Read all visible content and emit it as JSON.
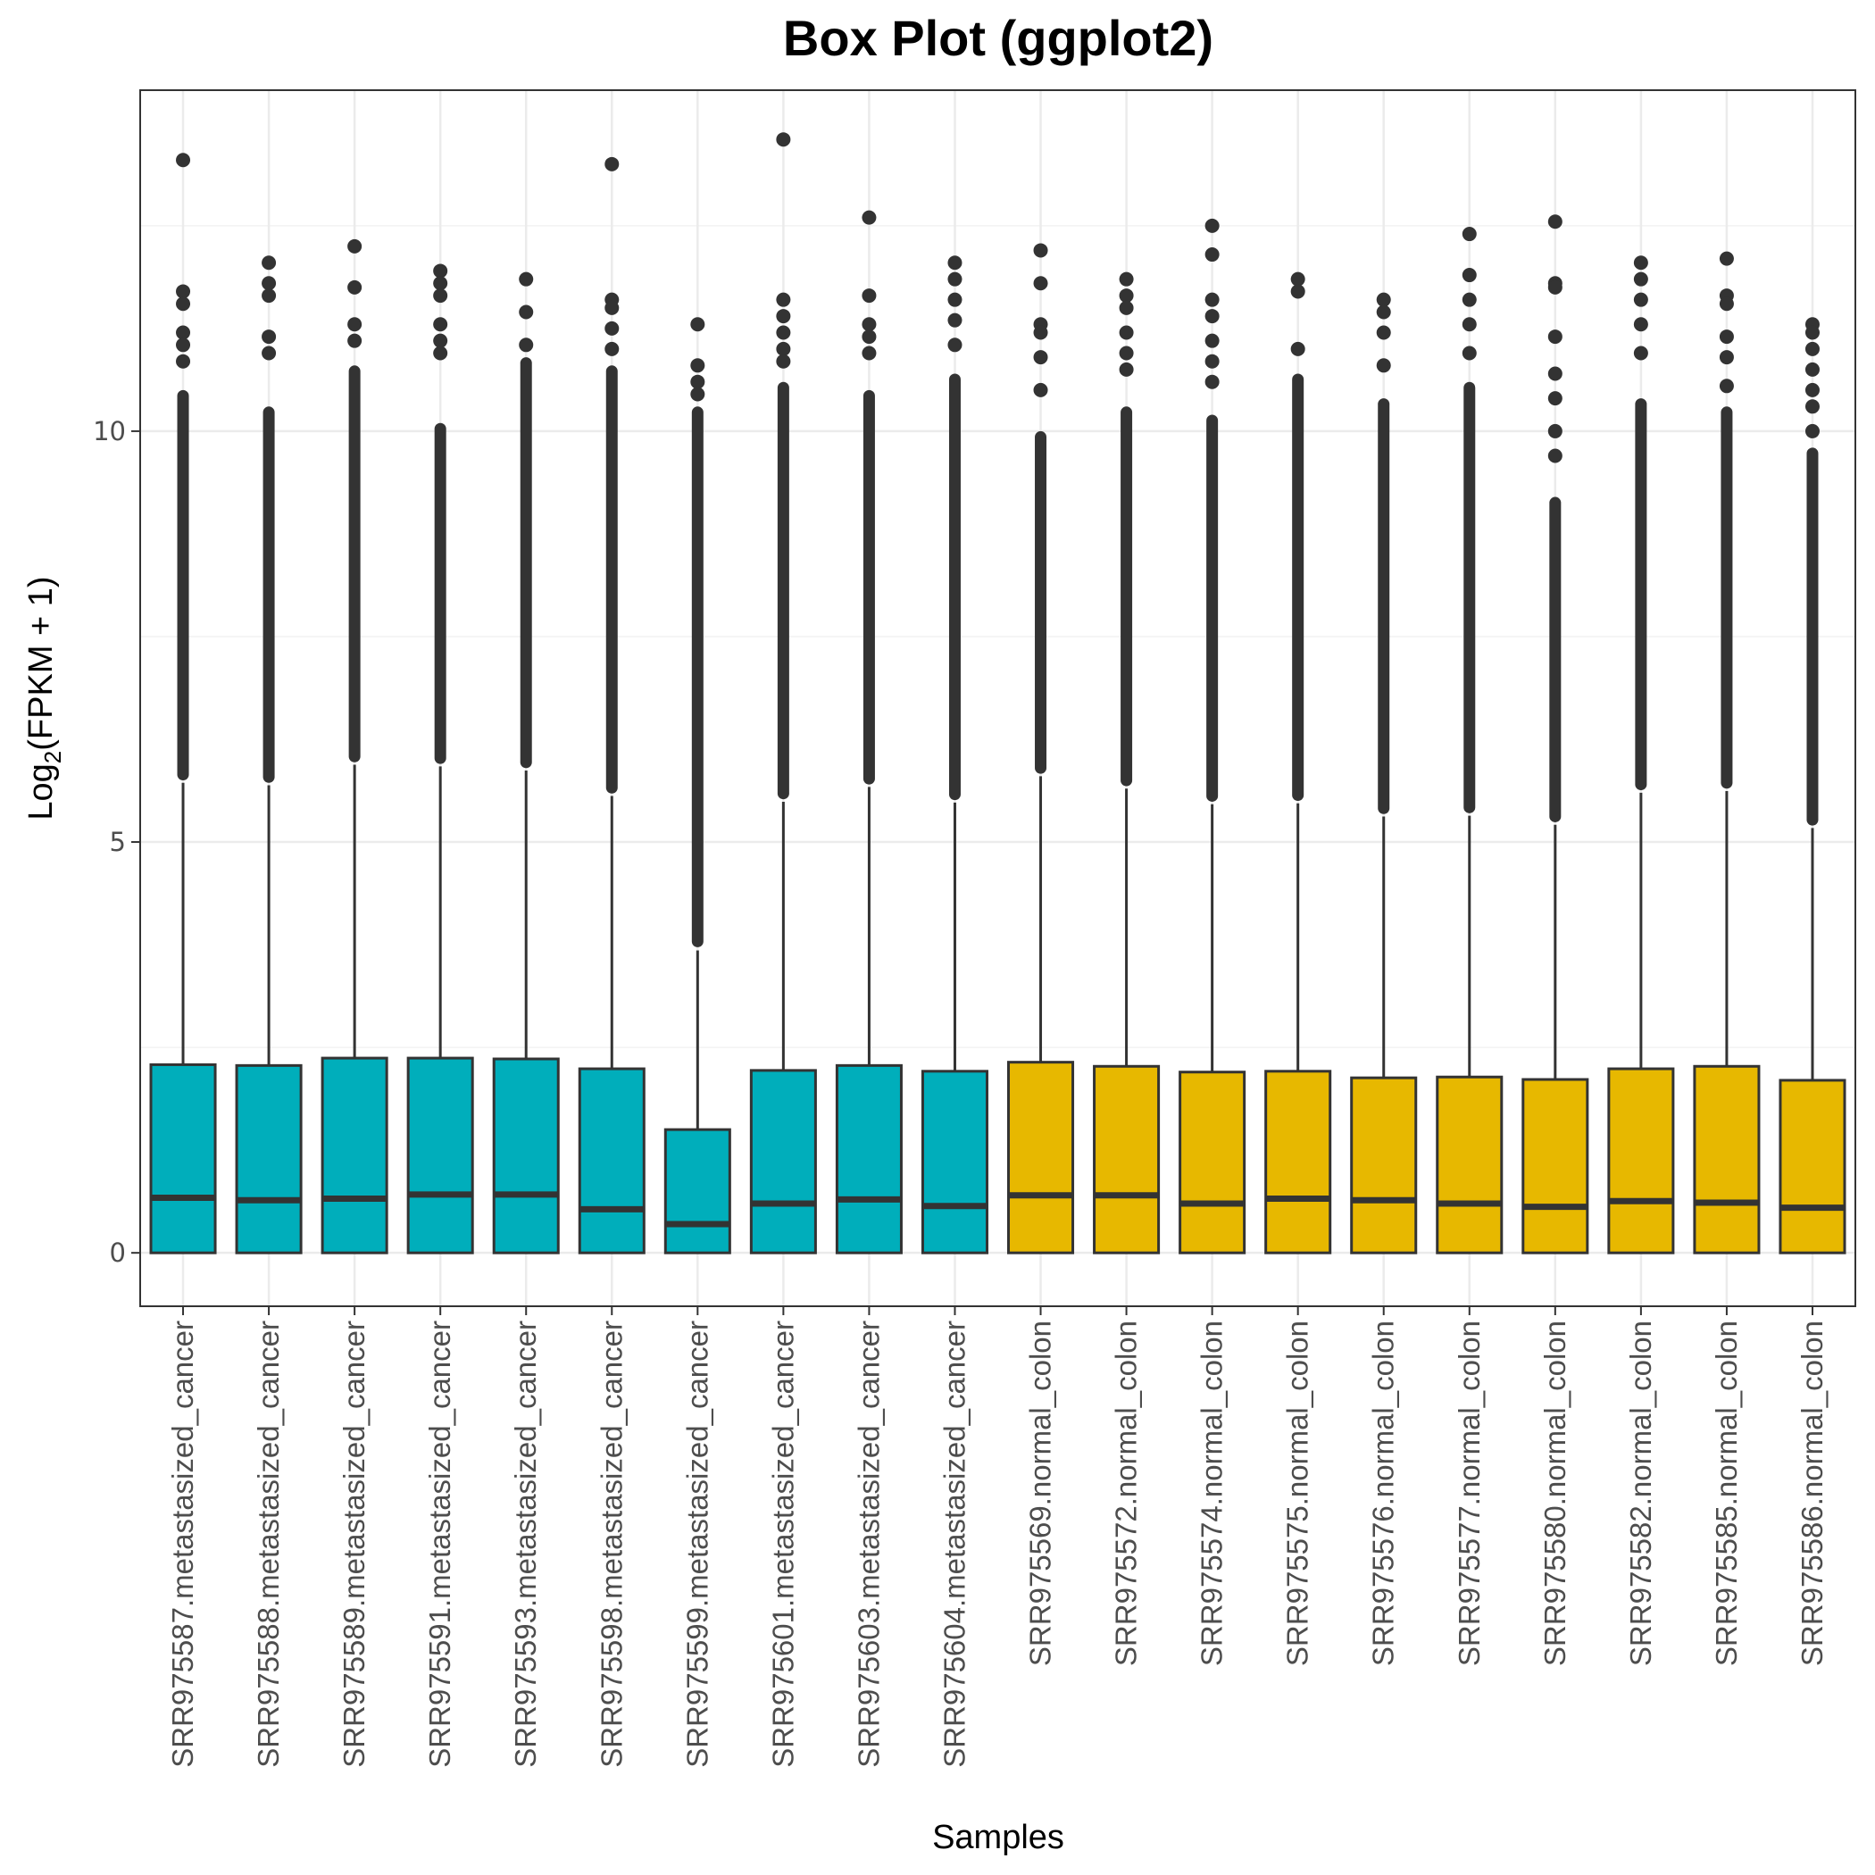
{
  "chart_data": {
    "type": "box",
    "title": "Box Plot (ggplot2)",
    "xlabel": "Samples",
    "ylabel": {
      "prefix": "Log",
      "subscript": "2",
      "suffix": "(FPKM + 1)"
    },
    "ylim": [
      -0.65,
      14.15
    ],
    "yticks": [
      0,
      5,
      10
    ],
    "grid": true,
    "legend": "none",
    "colors": {
      "metastasized_cancer": "#00AEBB",
      "normal_colon": "#E7B800",
      "outline": "#333333",
      "grid": "#ebebeb"
    },
    "boxes": [
      {
        "label": "SRR975587.metastasized_cancer",
        "group": "metastasized_cancer",
        "q1": 0.0,
        "median": 0.67,
        "q3": 2.29,
        "whisker_low": 0.0,
        "whisker_high": 5.72,
        "outlier_min": 5.75,
        "outlier_max": 10.5,
        "extreme_outliers": [
          11.7,
          11.55,
          11.2,
          11.05,
          10.85,
          13.3
        ]
      },
      {
        "label": "SRR975588.metastasized_cancer",
        "group": "metastasized_cancer",
        "q1": 0.0,
        "median": 0.64,
        "q3": 2.28,
        "whisker_low": 0.0,
        "whisker_high": 5.69,
        "outlier_min": 5.72,
        "outlier_max": 10.3,
        "extreme_outliers": [
          12.05,
          11.8,
          11.65,
          11.15,
          10.95
        ]
      },
      {
        "label": "SRR975589.metastasized_cancer",
        "group": "metastasized_cancer",
        "q1": 0.0,
        "median": 0.66,
        "q3": 2.37,
        "whisker_low": 0.0,
        "whisker_high": 5.94,
        "outlier_min": 5.97,
        "outlier_max": 10.8,
        "extreme_outliers": [
          12.25,
          11.75,
          11.3,
          11.1
        ]
      },
      {
        "label": "SRR975591.metastasized_cancer",
        "group": "metastasized_cancer",
        "q1": 0.0,
        "median": 0.71,
        "q3": 2.37,
        "whisker_low": 0.0,
        "whisker_high": 5.92,
        "outlier_min": 5.95,
        "outlier_max": 10.1,
        "extreme_outliers": [
          11.95,
          11.8,
          11.65,
          11.3,
          11.1,
          10.95
        ]
      },
      {
        "label": "SRR975593.metastasized_cancer",
        "group": "metastasized_cancer",
        "q1": 0.0,
        "median": 0.71,
        "q3": 2.36,
        "whisker_low": 0.0,
        "whisker_high": 5.87,
        "outlier_min": 5.9,
        "outlier_max": 10.9,
        "extreme_outliers": [
          11.85,
          11.45,
          11.05
        ]
      },
      {
        "label": "SRR975598.metastasized_cancer",
        "group": "metastasized_cancer",
        "q1": 0.0,
        "median": 0.53,
        "q3": 2.24,
        "whisker_low": 0.0,
        "whisker_high": 5.56,
        "outlier_min": 5.59,
        "outlier_max": 10.8,
        "extreme_outliers": [
          13.25,
          11.6,
          11.5,
          11.25,
          11.0
        ]
      },
      {
        "label": "SRR975599.metastasized_cancer",
        "group": "metastasized_cancer",
        "q1": 0.0,
        "median": 0.35,
        "q3": 1.5,
        "whisker_low": 0.0,
        "whisker_high": 3.68,
        "outlier_min": 3.72,
        "outlier_max": 10.3,
        "extreme_outliers": [
          11.3,
          10.8,
          10.6,
          10.45
        ]
      },
      {
        "label": "SRR975601.metastasized_cancer",
        "group": "metastasized_cancer",
        "q1": 0.0,
        "median": 0.6,
        "q3": 2.22,
        "whisker_low": 0.0,
        "whisker_high": 5.49,
        "outlier_min": 5.52,
        "outlier_max": 10.6,
        "extreme_outliers": [
          13.55,
          11.6,
          11.4,
          11.2,
          11.0,
          10.85
        ]
      },
      {
        "label": "SRR975603.metastasized_cancer",
        "group": "metastasized_cancer",
        "q1": 0.0,
        "median": 0.65,
        "q3": 2.28,
        "whisker_low": 0.0,
        "whisker_high": 5.67,
        "outlier_min": 5.7,
        "outlier_max": 10.5,
        "extreme_outliers": [
          12.6,
          11.65,
          11.3,
          11.15,
          10.95
        ]
      },
      {
        "label": "SRR975604.metastasized_cancer",
        "group": "metastasized_cancer",
        "q1": 0.0,
        "median": 0.57,
        "q3": 2.21,
        "whisker_low": 0.0,
        "whisker_high": 5.48,
        "outlier_min": 5.51,
        "outlier_max": 10.7,
        "extreme_outliers": [
          12.05,
          11.85,
          11.6,
          11.35,
          11.05
        ]
      },
      {
        "label": "SRR975569.normal_colon",
        "group": "normal_colon",
        "q1": 0.0,
        "median": 0.7,
        "q3": 2.32,
        "whisker_low": 0.0,
        "whisker_high": 5.8,
        "outlier_min": 5.83,
        "outlier_max": 10.0,
        "extreme_outliers": [
          12.2,
          11.8,
          11.3,
          11.2,
          10.9,
          10.5
        ]
      },
      {
        "label": "SRR975572.normal_colon",
        "group": "normal_colon",
        "q1": 0.0,
        "median": 0.7,
        "q3": 2.27,
        "whisker_low": 0.0,
        "whisker_high": 5.65,
        "outlier_min": 5.68,
        "outlier_max": 10.3,
        "extreme_outliers": [
          11.85,
          11.65,
          11.5,
          11.2,
          10.95,
          10.75
        ]
      },
      {
        "label": "SRR975574.normal_colon",
        "group": "normal_colon",
        "q1": 0.0,
        "median": 0.6,
        "q3": 2.2,
        "whisker_low": 0.0,
        "whisker_high": 5.46,
        "outlier_min": 5.49,
        "outlier_max": 10.2,
        "extreme_outliers": [
          12.5,
          12.15,
          11.6,
          11.4,
          11.1,
          10.85,
          10.6
        ]
      },
      {
        "label": "SRR975575.normal_colon",
        "group": "normal_colon",
        "q1": 0.0,
        "median": 0.66,
        "q3": 2.21,
        "whisker_low": 0.0,
        "whisker_high": 5.47,
        "outlier_min": 5.5,
        "outlier_max": 10.7,
        "extreme_outliers": [
          11.85,
          11.7,
          11.0
        ]
      },
      {
        "label": "SRR975576.normal_colon",
        "group": "normal_colon",
        "q1": 0.0,
        "median": 0.64,
        "q3": 2.13,
        "whisker_low": 0.0,
        "whisker_high": 5.31,
        "outlier_min": 5.34,
        "outlier_max": 10.4,
        "extreme_outliers": [
          11.6,
          11.45,
          11.2,
          10.8
        ]
      },
      {
        "label": "SRR975577.normal_colon",
        "group": "normal_colon",
        "q1": 0.0,
        "median": 0.6,
        "q3": 2.14,
        "whisker_low": 0.0,
        "whisker_high": 5.32,
        "outlier_min": 5.35,
        "outlier_max": 10.6,
        "extreme_outliers": [
          12.4,
          11.9,
          11.6,
          11.3,
          10.95
        ]
      },
      {
        "label": "SRR975580.normal_colon",
        "group": "normal_colon",
        "q1": 0.0,
        "median": 0.56,
        "q3": 2.11,
        "whisker_low": 0.0,
        "whisker_high": 5.21,
        "outlier_min": 5.24,
        "outlier_max": 9.2,
        "extreme_outliers": [
          12.55,
          11.8,
          11.75,
          11.15,
          10.7,
          10.4,
          10.0,
          9.7
        ]
      },
      {
        "label": "SRR975582.normal_colon",
        "group": "normal_colon",
        "q1": 0.0,
        "median": 0.63,
        "q3": 2.24,
        "whisker_low": 0.0,
        "whisker_high": 5.6,
        "outlier_min": 5.63,
        "outlier_max": 10.4,
        "extreme_outliers": [
          12.05,
          11.85,
          11.6,
          11.3,
          10.95
        ]
      },
      {
        "label": "SRR975585.normal_colon",
        "group": "normal_colon",
        "q1": 0.0,
        "median": 0.61,
        "q3": 2.27,
        "whisker_low": 0.0,
        "whisker_high": 5.62,
        "outlier_min": 5.65,
        "outlier_max": 10.3,
        "extreme_outliers": [
          12.1,
          11.65,
          11.55,
          11.15,
          10.9,
          10.55
        ]
      },
      {
        "label": "SRR975586.normal_colon",
        "group": "normal_colon",
        "q1": 0.0,
        "median": 0.55,
        "q3": 2.1,
        "whisker_low": 0.0,
        "whisker_high": 5.17,
        "outlier_min": 5.2,
        "outlier_max": 9.8,
        "extreme_outliers": [
          11.3,
          11.2,
          11.0,
          10.75,
          10.5,
          10.3,
          10.0
        ]
      }
    ]
  }
}
